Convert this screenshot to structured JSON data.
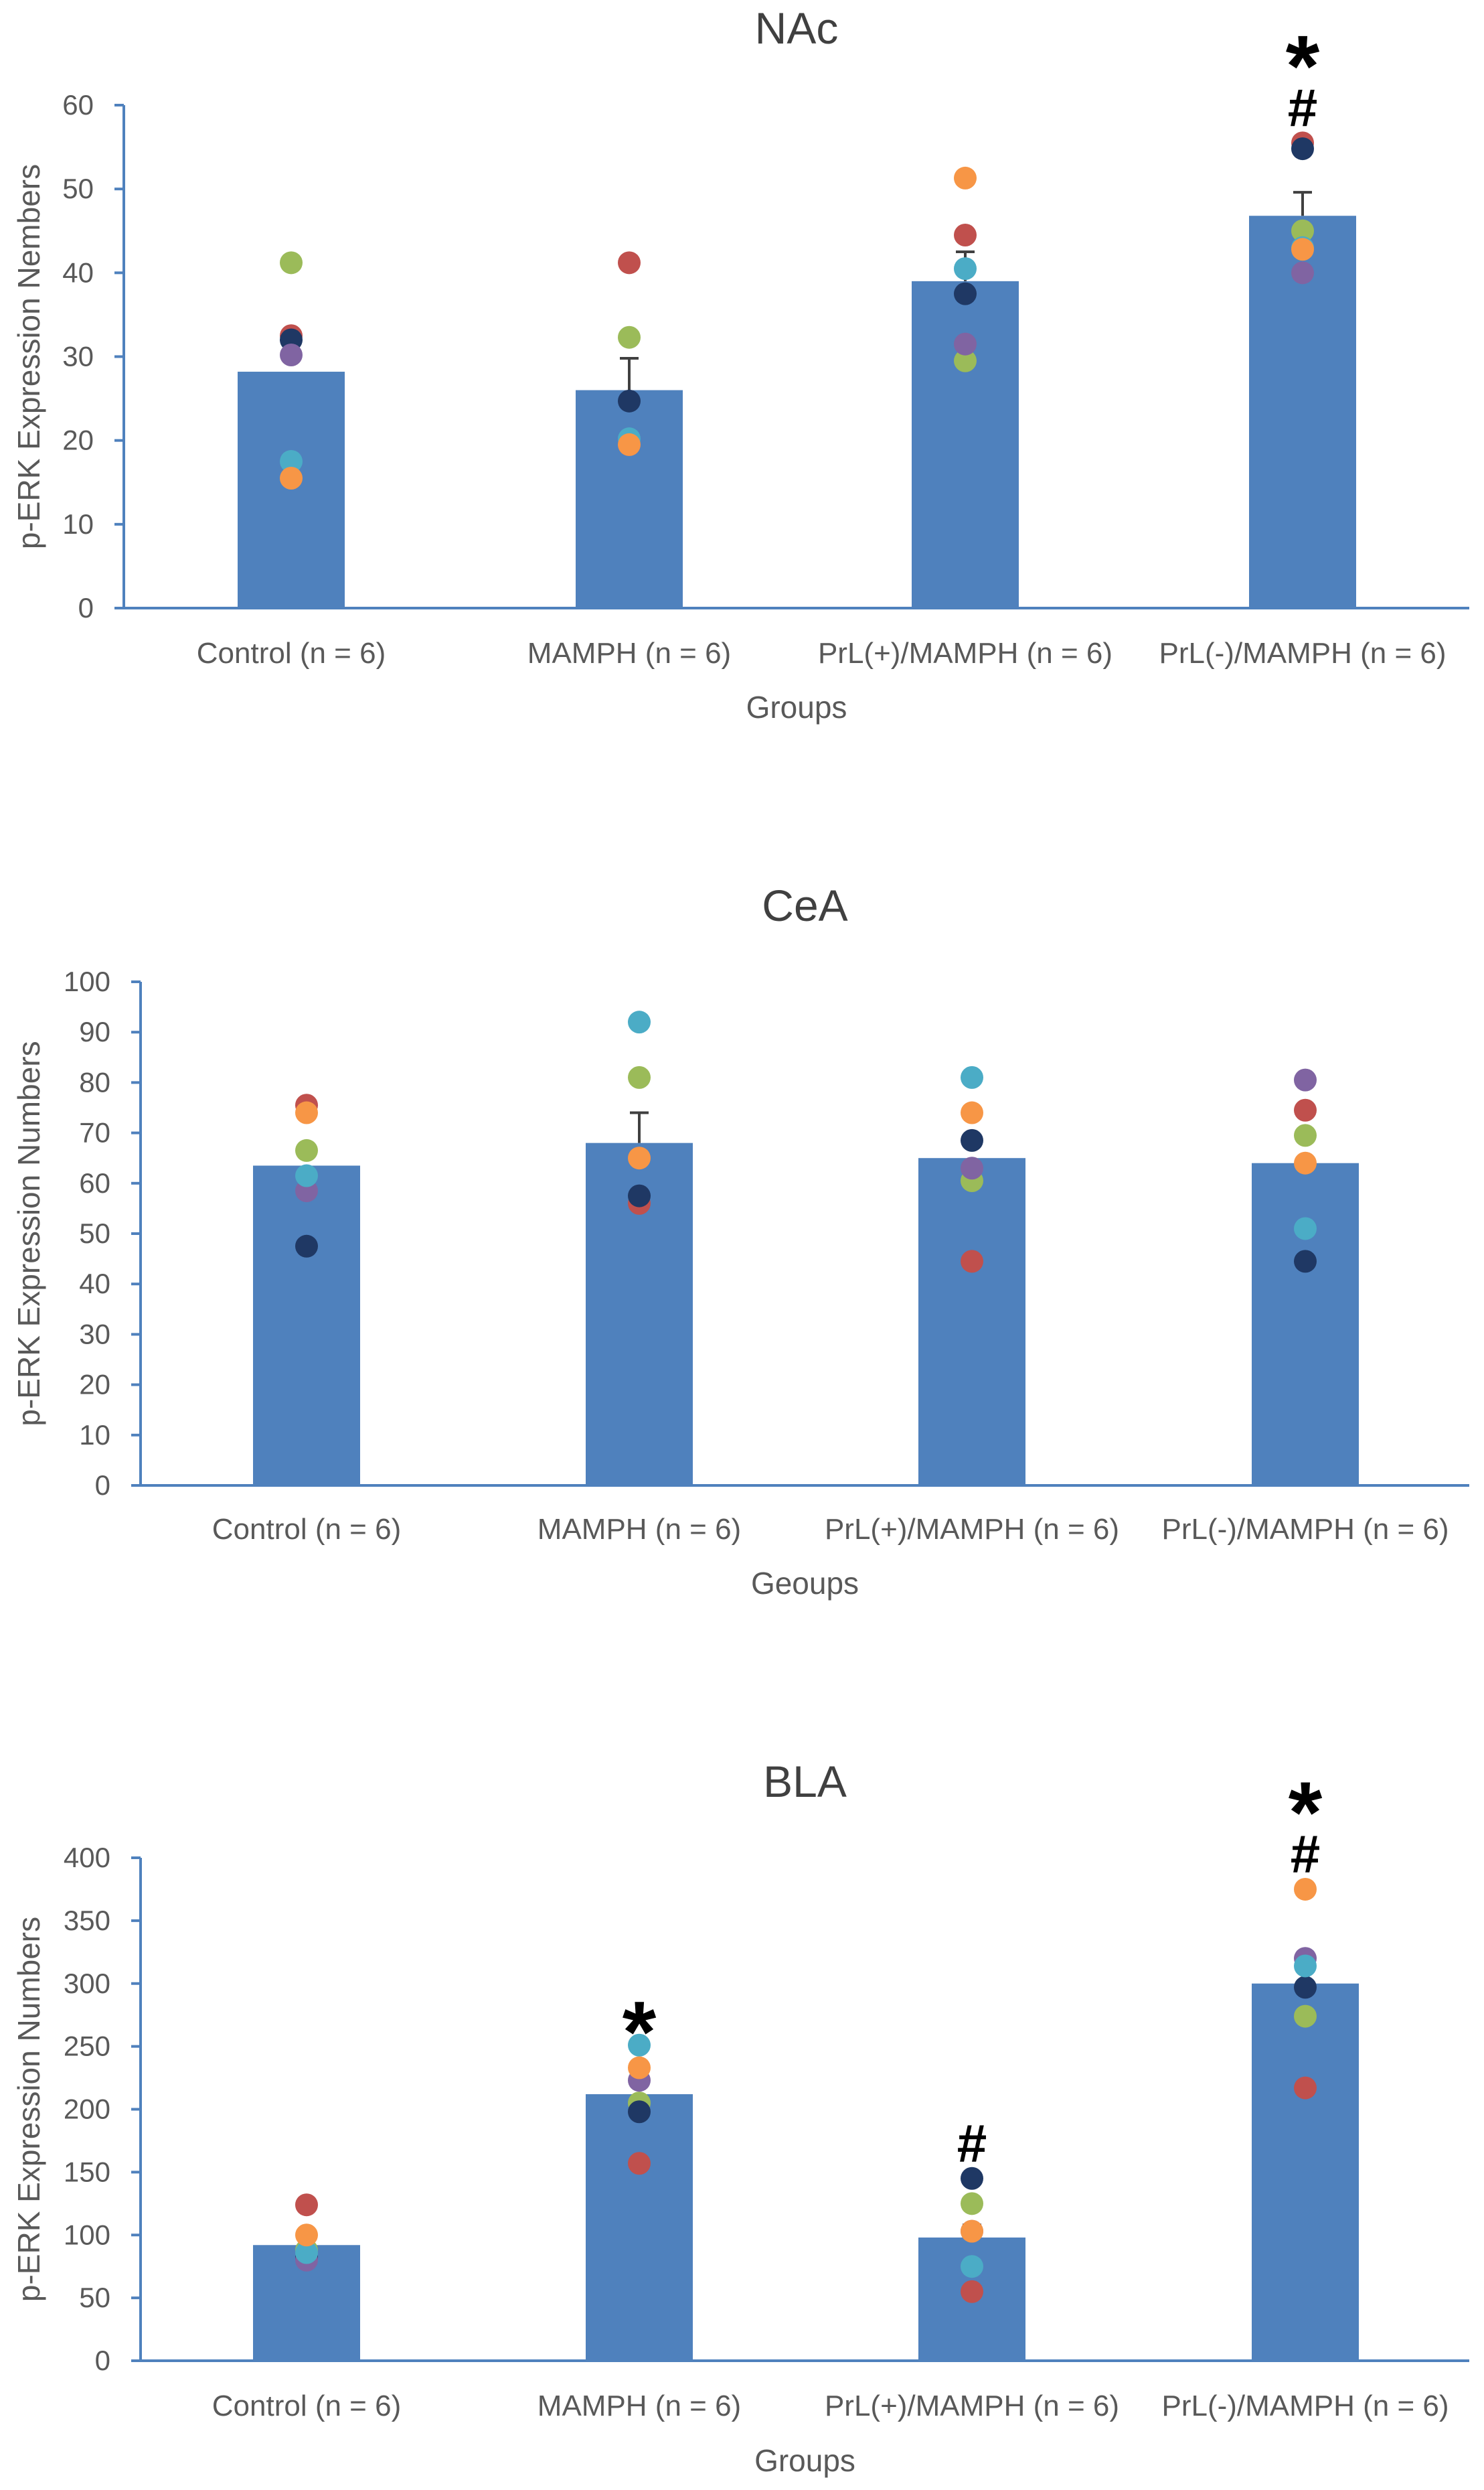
{
  "chart_data": [
    {
      "type": "bar",
      "title": "NAc",
      "xlabel": "Groups",
      "ylabel": "p-ERK Expression Nembers",
      "ylim": [
        0,
        60
      ],
      "yticks": [
        0,
        10,
        20,
        30,
        40,
        50,
        60
      ],
      "categories": [
        "Control (n = 6)",
        "MAMPH (n = 6)",
        "PrL(+)/MAMPH (n = 6)",
        "PrL(-)/MAMPH (n = 6)"
      ],
      "values": [
        28.2,
        26.0,
        39.0,
        46.8
      ],
      "errors": [
        0,
        3.8,
        3.5,
        2.8
      ],
      "bar_color": "#4F81BD",
      "point_colors": [
        "#9BBB59",
        "#C0504D",
        "#1F3864",
        "#8064A2",
        "#4BACC6",
        "#F79646"
      ],
      "points": [
        [
          41.2,
          32.5,
          32.0,
          30.2,
          17.5,
          15.5
        ],
        [
          32.3,
          41.2,
          24.7,
          19.5,
          20.2,
          19.5
        ],
        [
          29.5,
          44.5,
          37.5,
          31.5,
          40.5,
          51.3
        ],
        [
          45.0,
          55.5,
          54.8,
          40.0,
          43.0,
          42.8
        ]
      ],
      "annotations": [
        {
          "category": 3,
          "text": "#"
        },
        {
          "category": 3,
          "text": "*"
        }
      ]
    },
    {
      "type": "bar",
      "title": "CeA",
      "xlabel": "Geoups",
      "ylabel": "p-ERK Expression Numbers",
      "ylim": [
        0,
        100
      ],
      "yticks": [
        0,
        10,
        20,
        30,
        40,
        50,
        60,
        70,
        80,
        90,
        100
      ],
      "categories": [
        "Control (n = 6)",
        "MAMPH (n = 6)",
        "PrL(+)/MAMPH (n = 6)",
        "PrL(-)/MAMPH (n = 6)"
      ],
      "values": [
        63.5,
        68.0,
        65.0,
        64.0
      ],
      "errors": [
        0,
        6.0,
        0,
        0
      ],
      "bar_color": "#4F81BD",
      "point_colors": [
        "#9BBB59",
        "#C0504D",
        "#1F3864",
        "#8064A2",
        "#4BACC6",
        "#F79646"
      ],
      "points": [
        [
          66.5,
          75.5,
          47.5,
          58.5,
          61.5,
          74.0
        ],
        [
          81.0,
          56.0,
          57.5,
          65.0,
          92.0,
          65.0
        ],
        [
          60.5,
          44.5,
          68.5,
          63.0,
          81.0,
          74.0
        ],
        [
          69.5,
          74.5,
          44.5,
          80.5,
          51.0,
          64.0
        ]
      ],
      "annotations": []
    },
    {
      "type": "bar",
      "title": "BLA",
      "xlabel": "Groups",
      "ylabel": "p-ERK Expression Numbers",
      "ylim": [
        0,
        400
      ],
      "yticks": [
        0,
        50,
        100,
        150,
        200,
        250,
        300,
        350,
        400
      ],
      "categories": [
        "Control (n = 6)",
        "MAMPH (n = 6)",
        "PrL(+)/MAMPH (n = 6)",
        "PrL(-)/MAMPH (n = 6)"
      ],
      "values": [
        92,
        212,
        98,
        300
      ],
      "errors": [
        0,
        0,
        10,
        0
      ],
      "bar_color": "#4F81BD",
      "point_colors": [
        "#9BBB59",
        "#C0504D",
        "#1F3864",
        "#8064A2",
        "#4BACC6",
        "#F79646"
      ],
      "points": [
        [
          88,
          124,
          82,
          80,
          86,
          100
        ],
        [
          205,
          157,
          198,
          223,
          251,
          233
        ],
        [
          125,
          55,
          145,
          103,
          75,
          103
        ],
        [
          274,
          217,
          297,
          320,
          314,
          375
        ]
      ],
      "annotations": [
        {
          "category": 1,
          "text": "*"
        },
        {
          "category": 2,
          "text": "#"
        },
        {
          "category": 3,
          "text": "#"
        },
        {
          "category": 3,
          "text": "*"
        }
      ]
    }
  ]
}
